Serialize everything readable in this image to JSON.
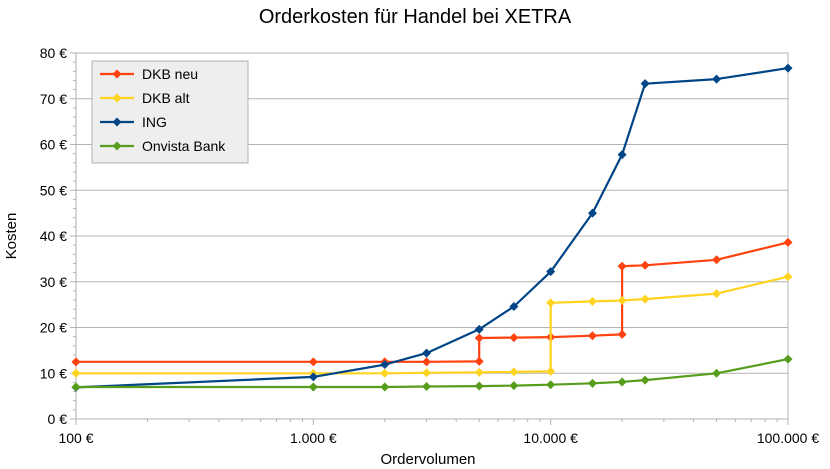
{
  "chart_data": {
    "type": "line",
    "title": "Orderkosten für Handel bei XETRA",
    "xlabel": "Ordervolumen",
    "ylabel": "Kosten",
    "x_scale": "log",
    "xlim": [
      100,
      100000
    ],
    "ylim": [
      0,
      80
    ],
    "x_ticks": [
      100,
      1000,
      10000,
      100000
    ],
    "x_tick_labels": [
      "100 €",
      "1.000 €",
      "10.000 €",
      "100.000 €"
    ],
    "y_ticks": [
      0,
      10,
      20,
      30,
      40,
      50,
      60,
      70,
      80
    ],
    "y_tick_labels": [
      "0 €",
      "10 €",
      "20 €",
      "30 €",
      "40 €",
      "50 €",
      "60 €",
      "70 €",
      "80 €"
    ],
    "grid": "horizontal",
    "legend_position": "top-left",
    "series": [
      {
        "name": "DKB neu",
        "color": "#ff420e",
        "points": [
          [
            100,
            12.5
          ],
          [
            1000,
            12.5
          ],
          [
            2000,
            12.5
          ],
          [
            3000,
            12.5
          ],
          [
            4999,
            12.6
          ],
          [
            5000,
            17.7
          ],
          [
            7000,
            17.8
          ],
          [
            9999,
            17.9
          ],
          [
            10000,
            17.9
          ],
          [
            15000,
            18.2
          ],
          [
            19999,
            18.5
          ],
          [
            20000,
            33.4
          ],
          [
            25000,
            33.6
          ],
          [
            50000,
            34.8
          ],
          [
            100000,
            38.6
          ]
        ]
      },
      {
        "name": "DKB alt",
        "color": "#ffd320",
        "points": [
          [
            100,
            10
          ],
          [
            1000,
            10
          ],
          [
            2000,
            10
          ],
          [
            3000,
            10.1
          ],
          [
            5000,
            10.2
          ],
          [
            7000,
            10.3
          ],
          [
            9999,
            10.4
          ],
          [
            10000,
            25.4
          ],
          [
            15000,
            25.7
          ],
          [
            20000,
            25.9
          ],
          [
            25000,
            26.2
          ],
          [
            50000,
            27.4
          ],
          [
            100000,
            31.1
          ]
        ]
      },
      {
        "name": "ING",
        "color": "#004586",
        "points": [
          [
            100,
            6.9
          ],
          [
            1000,
            9.2
          ],
          [
            2000,
            11.9
          ],
          [
            3000,
            14.4
          ],
          [
            5000,
            19.6
          ],
          [
            7000,
            24.6
          ],
          [
            10000,
            32.2
          ],
          [
            15000,
            45
          ],
          [
            20000,
            57.8
          ],
          [
            25000,
            73.3
          ],
          [
            50000,
            74.3
          ],
          [
            100000,
            76.7
          ]
        ]
      },
      {
        "name": "Onvista Bank",
        "color": "#579d1c",
        "points": [
          [
            100,
            7
          ],
          [
            1000,
            7
          ],
          [
            2000,
            7
          ],
          [
            3000,
            7.1
          ],
          [
            5000,
            7.2
          ],
          [
            7000,
            7.3
          ],
          [
            10000,
            7.5
          ],
          [
            15000,
            7.8
          ],
          [
            20000,
            8.1
          ],
          [
            25000,
            8.5
          ],
          [
            50000,
            10
          ],
          [
            100000,
            13.1
          ]
        ]
      }
    ]
  }
}
